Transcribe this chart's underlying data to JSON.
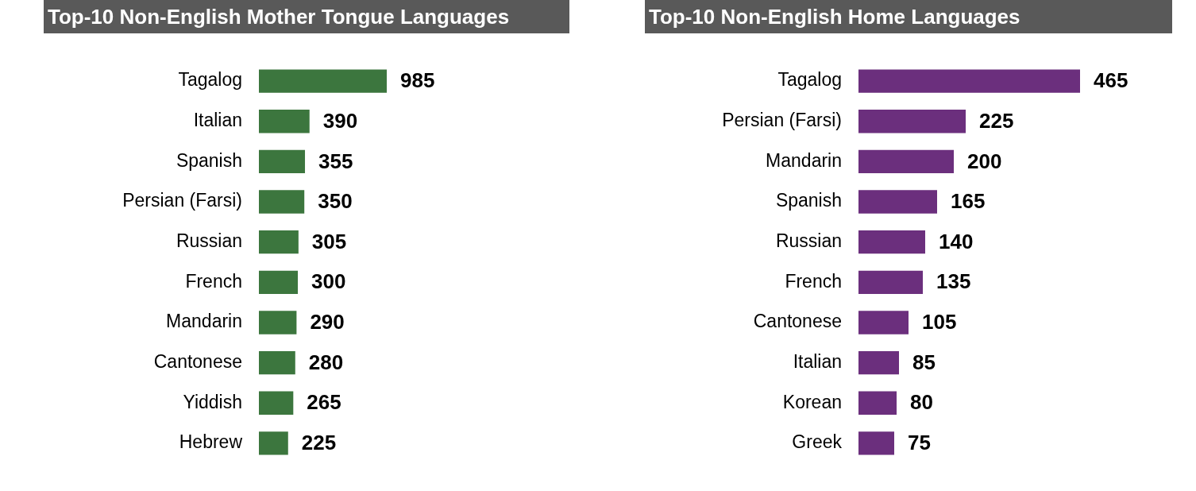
{
  "chart_data": [
    {
      "type": "bar",
      "orientation": "horizontal",
      "title": "Top-10 Non-English Mother Tongue Languages",
      "categories": [
        "Tagalog",
        "Italian",
        "Spanish",
        "Persian (Farsi)",
        "Russian",
        "French",
        "Mandarin",
        "Cantonese",
        "Yiddish",
        "Hebrew"
      ],
      "values": [
        985,
        390,
        355,
        350,
        305,
        300,
        290,
        280,
        265,
        225
      ],
      "color": "#3c763e",
      "data_labels": true,
      "tick_labels": "y"
    },
    {
      "type": "bar",
      "orientation": "horizontal",
      "title": "Top-10 Non-English Home Languages",
      "categories": [
        "Tagalog",
        "Persian (Farsi)",
        "Mandarin",
        "Spanish",
        "Russian",
        "French",
        "Cantonese",
        "Italian",
        "Korean",
        "Greek"
      ],
      "values": [
        465,
        225,
        200,
        165,
        140,
        135,
        105,
        85,
        80,
        75
      ],
      "color": "#6b2f7d",
      "data_labels": true,
      "tick_labels": "y"
    }
  ]
}
